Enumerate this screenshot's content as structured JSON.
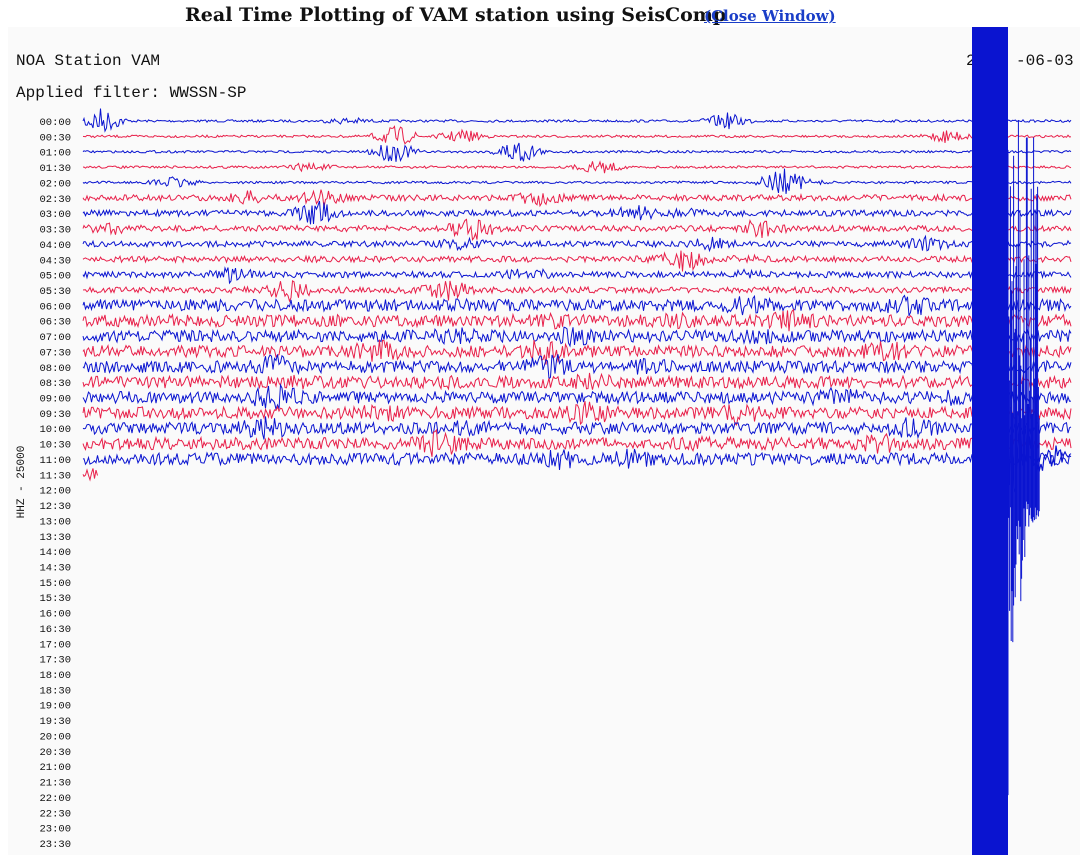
{
  "header": {
    "title": "Real Time Plotting of VAM station using SeisComp",
    "link": "(Close Window)"
  },
  "plot": {
    "station": "NOA Station VAM",
    "date_parts": [
      "2",
      "-06-03"
    ],
    "filter": "Applied filter: WWSSN-SP",
    "channel": "HHZ - 25000",
    "times": [
      "00:00",
      "00:30",
      "01:00",
      "01:30",
      "02:00",
      "02:30",
      "03:00",
      "03:30",
      "04:00",
      "04:30",
      "05:00",
      "05:30",
      "06:00",
      "06:30",
      "07:00",
      "07:30",
      "08:00",
      "08:30",
      "09:00",
      "09:30",
      "10:00",
      "10:30",
      "11:00",
      "11:30",
      "12:00",
      "12:30",
      "13:00",
      "13:30",
      "14:00",
      "14:30",
      "15:00",
      "15:30",
      "16:00",
      "16:30",
      "17:00",
      "17:30",
      "18:00",
      "18:30",
      "19:00",
      "19:30",
      "20:00",
      "20:30",
      "21:00",
      "21:30",
      "22:00",
      "22:30",
      "23:00",
      "23:30"
    ]
  }
}
